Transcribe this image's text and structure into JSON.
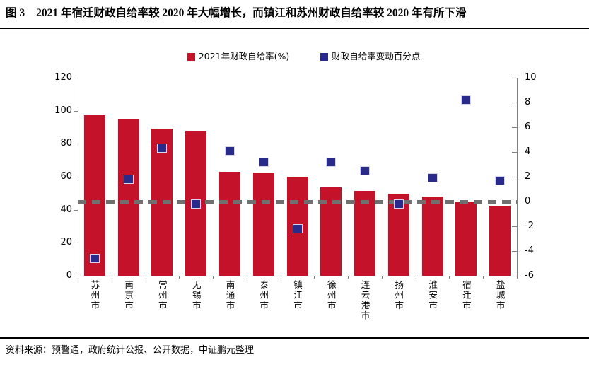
{
  "header": {
    "figure_label": "图 3",
    "title": "2021 年宿迁财政自给率较 2020 年大幅增长，而镇江和苏州财政自给率较 2020 年有所下滑"
  },
  "footer": {
    "source": "资料来源：预警通，政府统计公报、公开数据，中证鹏元整理"
  },
  "colors": {
    "bar": "#C5122B",
    "marker": "#2A2A8A",
    "marker_edge": "#D7D7EA",
    "axis": "#808080",
    "dashed_line": "#707070",
    "text": "#000000",
    "rule": "#000000"
  },
  "chart_data": {
    "type": "bar",
    "title": "",
    "categories": [
      "苏州市",
      "南京市",
      "常州市",
      "无锡市",
      "南通市",
      "泰州市",
      "镇江市",
      "徐州市",
      "连云港市",
      "扬州市",
      "淮安市",
      "宿迁市",
      "盐城市"
    ],
    "series": [
      {
        "name": "2021年财政自给率(%)",
        "type": "bar",
        "axis": "left",
        "color": "#C5122B",
        "values": [
          97.2,
          95.3,
          89.3,
          88.0,
          63.2,
          62.6,
          60.2,
          53.4,
          51.3,
          49.7,
          48.0,
          44.8,
          42.5
        ]
      },
      {
        "name": "财政自给率变动百分点",
        "type": "scatter",
        "axis": "right",
        "color": "#2A2A8A",
        "values": [
          -4.6,
          1.8,
          4.3,
          -0.2,
          4.1,
          3.2,
          -2.2,
          3.2,
          2.5,
          -0.2,
          1.9,
          8.2,
          1.7
        ]
      }
    ],
    "left_axis": {
      "min": 0,
      "max": 120,
      "ticks": [
        0,
        20,
        40,
        60,
        80,
        100,
        120
      ]
    },
    "right_axis": {
      "min": -6,
      "max": 10,
      "ticks": [
        -6,
        -4,
        -2,
        0,
        2,
        4,
        6,
        8,
        10
      ]
    },
    "reference_line": {
      "axis": "right",
      "value": 0,
      "style": "dashed"
    },
    "legend_position": "top",
    "grid": false
  }
}
